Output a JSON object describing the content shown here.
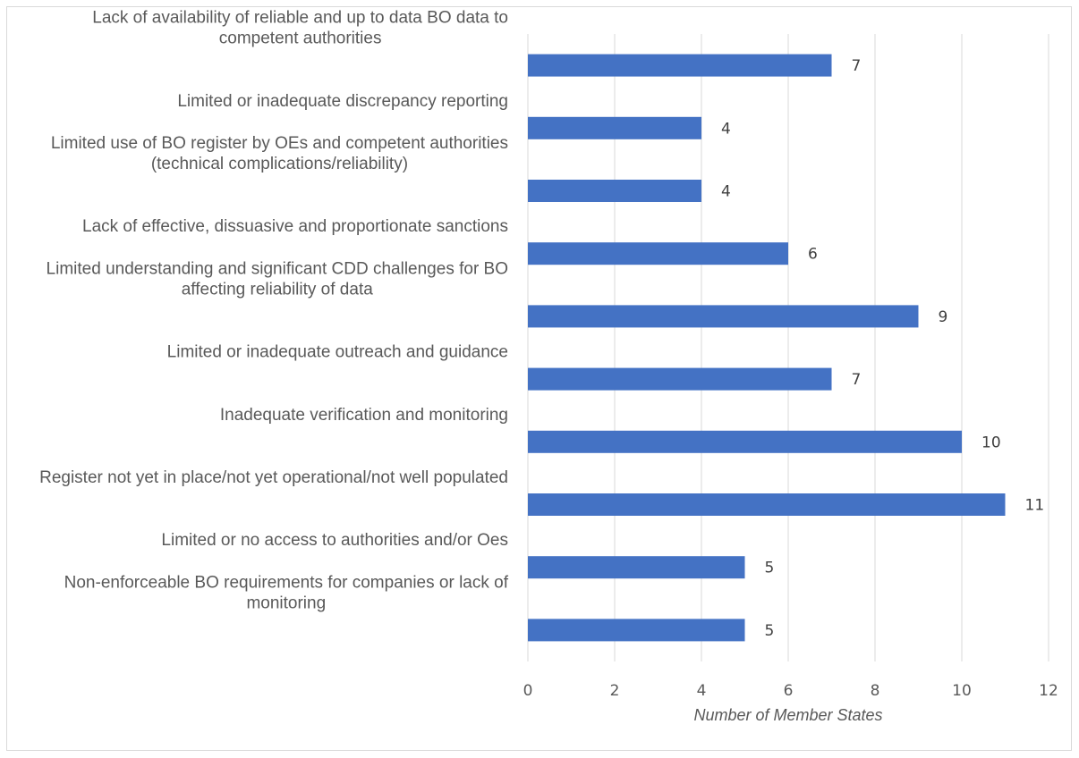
{
  "chart_data": {
    "type": "bar",
    "orientation": "horizontal",
    "categories": [
      [
        "Lack of availability of reliable and up to data BO data to",
        "competent authorities"
      ],
      [
        "Limited or inadequate discrepancy reporting"
      ],
      [
        "Limited use of BO register by OEs and competent authorities",
        "(technical complications/reliability)"
      ],
      [
        "Lack of effective, dissuasive and proportionate sanctions"
      ],
      [
        "Limited understanding and significant CDD challenges for BO",
        "affecting reliability of data"
      ],
      [
        "Limited or inadequate outreach and guidance"
      ],
      [
        "Inadequate verification and monitoring"
      ],
      [
        "Register not yet in place/not yet operational/not well populated"
      ],
      [
        "Limited or no access to authorities and/or Oes"
      ],
      [
        "Non-enforceable BO requirements for companies or lack of",
        "monitoring"
      ]
    ],
    "values": [
      7,
      4,
      4,
      6,
      9,
      7,
      10,
      11,
      5,
      5
    ],
    "xlabel": "Number of Member States",
    "xlim": [
      0,
      12
    ],
    "xticks": [
      0,
      2,
      4,
      6,
      8,
      10,
      12
    ],
    "grid": "vertical",
    "bar_color": "#4472c4",
    "data_labels": true
  }
}
